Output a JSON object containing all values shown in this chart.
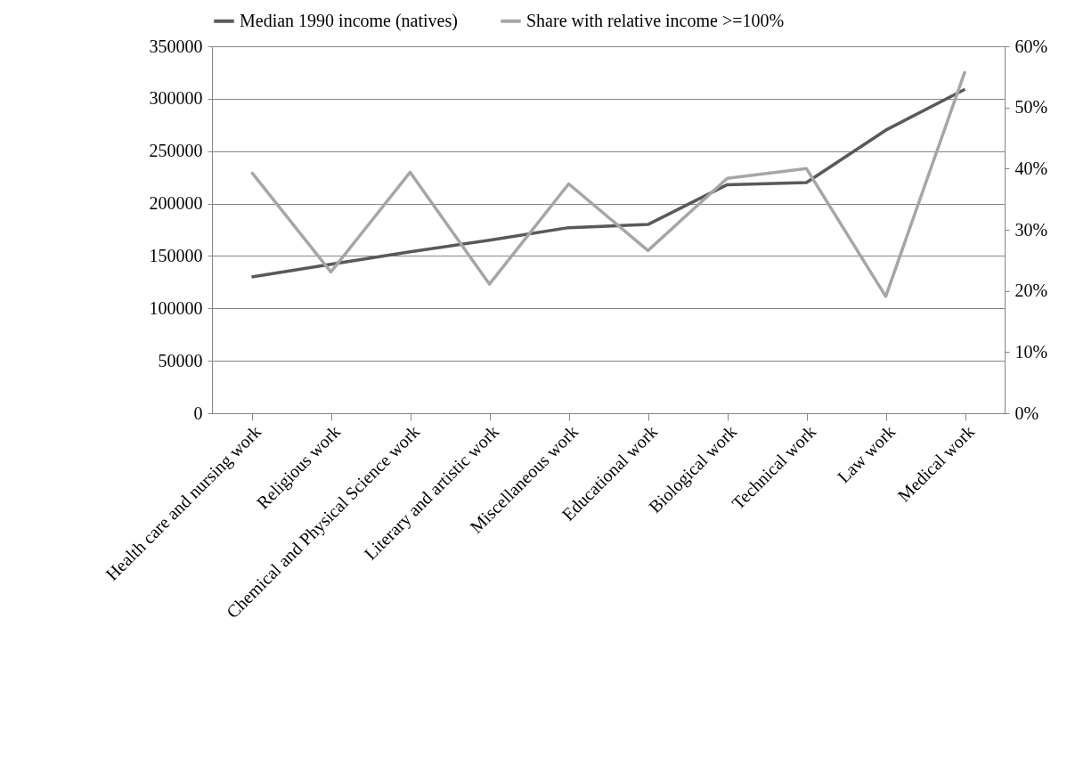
{
  "chart_data": {
    "type": "line",
    "categories": [
      "Health care and nursing work",
      "Religious work",
      "Chemical and Physical  Science work",
      "Literary and artistic work",
      "Miscellaneous work",
      "Educational work",
      "Biological work",
      "Technical work",
      "Law work",
      "Medical work"
    ],
    "series": [
      {
        "name": "Median 1990 income (natives)",
        "color": "#595959",
        "values": [
          130000,
          142000,
          154000,
          165000,
          177000,
          180000,
          218000,
          220000,
          270000,
          309000
        ]
      },
      {
        "name": "Share with relative income >=100%",
        "color": "#a6a6a6",
        "axis": "y2",
        "values": [
          39.4,
          23.1,
          39.4,
          21.1,
          37.5,
          26.6,
          38.4,
          40.0,
          19.1,
          55.9
        ]
      }
    ],
    "ylim": [
      0,
      350000
    ],
    "yticks": [
      0,
      50000,
      100000,
      150000,
      200000,
      250000,
      300000,
      350000
    ],
    "y2lim": [
      0,
      60
    ],
    "y2ticks": [
      {
        "value": 0,
        "label": "0%"
      },
      {
        "value": 10,
        "label": "10%"
      },
      {
        "value": 20,
        "label": "20%"
      },
      {
        "value": 30,
        "label": "30%"
      },
      {
        "value": 40,
        "label": "40%"
      },
      {
        "value": 50,
        "label": "50%"
      },
      {
        "value": 60,
        "label": "60%"
      }
    ],
    "grid": "y",
    "legend": "top",
    "marker": "none",
    "line_style": "solid"
  }
}
